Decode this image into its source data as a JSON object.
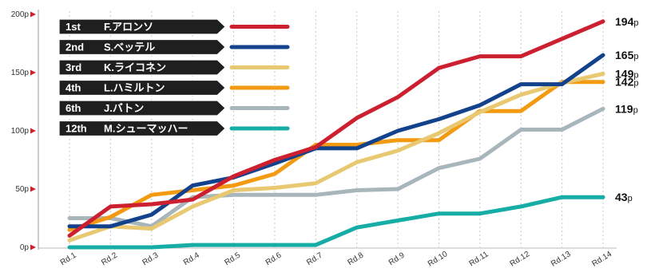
{
  "chart_data": {
    "type": "line",
    "categories": [
      "Rd.1",
      "Rd.2",
      "Rd.3",
      "Rd.4",
      "Rd.5",
      "Rd.6",
      "Rd.7",
      "Rd.8",
      "Rd.9",
      "Rd.10",
      "Rd.11",
      "Rd.12",
      "Rd.13",
      "Rd.14"
    ],
    "y_ticks": [
      "0p",
      "50p",
      "100p",
      "150p",
      "200p"
    ],
    "ylim": [
      0,
      200
    ],
    "grid": "vertical-dotted",
    "legend_position": "top-left",
    "series": [
      {
        "rank": "1st",
        "name": "F.アロンソ",
        "color": "#cc2030",
        "end_value": "194",
        "end_unit": "p",
        "values": [
          10,
          35,
          37,
          41,
          61,
          75,
          86,
          111,
          129,
          154,
          164,
          164,
          179,
          194
        ]
      },
      {
        "rank": "2nd",
        "name": "S.ベッテル",
        "color": "#13428c",
        "end_value": "165",
        "end_unit": "p",
        "values": [
          18,
          18,
          28,
          53,
          60,
          72,
          85,
          85,
          100,
          110,
          122,
          140,
          140,
          165
        ]
      },
      {
        "rank": "3rd",
        "name": "K.ライコネン",
        "color": "#e8c871",
        "end_value": "149",
        "end_unit": "p",
        "values": [
          6,
          18,
          16,
          35,
          49,
          51,
          55,
          73,
          83,
          98,
          116,
          131,
          141,
          149
        ]
      },
      {
        "rank": "4th",
        "name": "L.ハミルトン",
        "color": "#f29a11",
        "end_value": "142",
        "end_unit": "p",
        "values": [
          15,
          26,
          45,
          49,
          53,
          63,
          88,
          88,
          92,
          92,
          117,
          117,
          142,
          142
        ]
      },
      {
        "rank": "6th",
        "name": "J.バトン",
        "color": "#a8b5bb",
        "end_value": "119",
        "end_unit": "p",
        "values": [
          25,
          25,
          18,
          43,
          45,
          45,
          45,
          49,
          50,
          68,
          76,
          101,
          101,
          119
        ]
      },
      {
        "rank": "12th",
        "name": "M.シューマッハー",
        "color": "#15ada5",
        "end_value": "43",
        "end_unit": "p",
        "values": [
          0,
          0,
          0,
          2,
          2,
          2,
          2,
          17,
          23,
          29,
          29,
          35,
          43,
          43
        ]
      }
    ]
  }
}
